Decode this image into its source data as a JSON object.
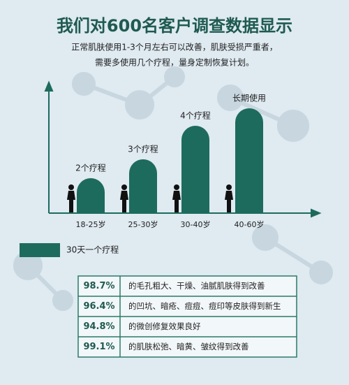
{
  "chart_data": {
    "type": "bar",
    "title": "我们对600名客户调查数据显示",
    "subtitle": [
      "正常肌肤使用1-3个月左右可以改善，肌肤受损严重者，",
      "需要多使用几个疗程，量身定制恢复计划。"
    ],
    "categories": [
      "18-25岁",
      "25-30岁",
      "30-40岁",
      "40-60岁"
    ],
    "series": [
      {
        "name": "30天一个疗程",
        "color": "#1d6b5d",
        "values": [
          50,
          77,
          125,
          150
        ]
      }
    ],
    "bar_labels": [
      "2个疗程",
      "3个疗程",
      "4个疗程",
      "长期使用"
    ],
    "ylim": [
      0,
      185
    ]
  },
  "table": {
    "rows": [
      [
        "98.7%",
        "的毛孔粗大、干燥、油腻肌肤得到改善"
      ],
      [
        "96.4%",
        "的凹坑、暗疮、痘痘、痘印等皮肤得到新生"
      ],
      [
        "94.8%",
        "的微创修复效果良好"
      ],
      [
        "99.1%",
        "的肌肤松弛、暗黄、皱纹得到改善"
      ]
    ]
  }
}
